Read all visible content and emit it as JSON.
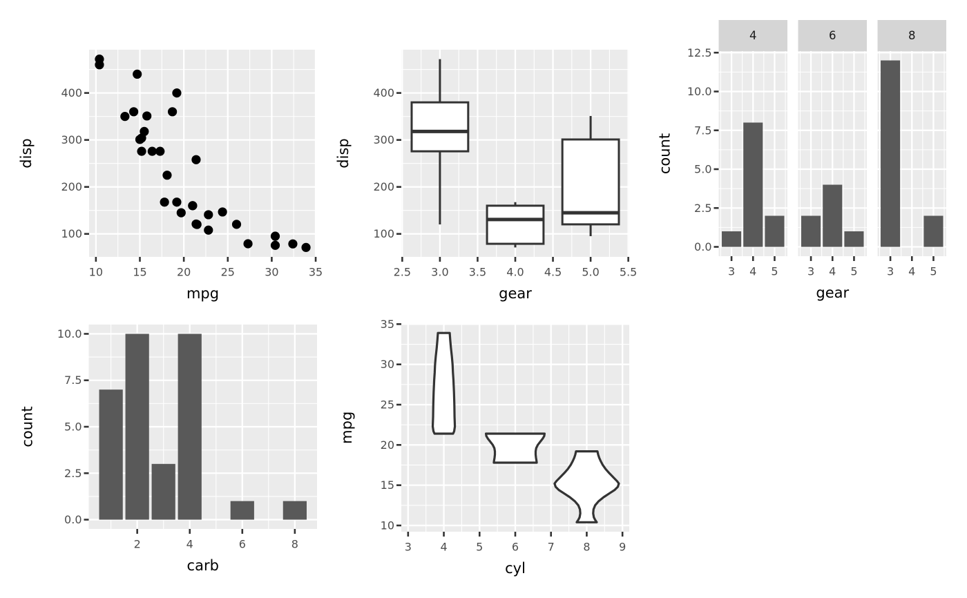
{
  "figure": {
    "background": "#FFFFFF",
    "panel_background": "#EBEBEB",
    "grid_major_color": "#FFFFFF",
    "grid_minor_color": "#FFFFFF",
    "tick_mark_color": "#333333",
    "tick_label_color": "#4D4D4D",
    "axis_title_color": "#000000",
    "bar_fill": "#595959",
    "point_fill": "#000000",
    "geom_outline_color": "#333333",
    "geom_fill": "#FFFFFF",
    "strip_background": "#D5D5D5",
    "strip_text_color": "#1A1A1A"
  },
  "chart_data": [
    {
      "id": "scatter-disp-mpg",
      "type": "scatter",
      "xlabel": "mpg",
      "ylabel": "disp",
      "xlim": [
        9.225,
        35.075
      ],
      "ylim": [
        51.05,
        492.05
      ],
      "xticks": [
        10,
        15,
        20,
        25,
        30,
        35
      ],
      "xtick_labels": [
        "10",
        "15",
        "20",
        "25",
        "30",
        "35"
      ],
      "yticks": [
        100,
        200,
        300,
        400
      ],
      "ytick_labels": [
        "100",
        "200",
        "300",
        "400"
      ],
      "xminor": [
        12.5,
        17.5,
        22.5,
        27.5,
        32.5
      ],
      "yminor": [
        50,
        150,
        250,
        350,
        450
      ],
      "grid": true,
      "points": [
        [
          21.0,
          160.0
        ],
        [
          21.0,
          160.0
        ],
        [
          22.8,
          108.0
        ],
        [
          21.4,
          258.0
        ],
        [
          18.7,
          360.0
        ],
        [
          18.1,
          225.0
        ],
        [
          14.3,
          360.0
        ],
        [
          24.4,
          146.7
        ],
        [
          22.8,
          140.8
        ],
        [
          19.2,
          167.6
        ],
        [
          17.8,
          167.6
        ],
        [
          16.4,
          275.8
        ],
        [
          17.3,
          275.8
        ],
        [
          15.2,
          275.8
        ],
        [
          10.4,
          472.0
        ],
        [
          10.4,
          460.0
        ],
        [
          14.7,
          440.0
        ],
        [
          32.4,
          78.7
        ],
        [
          30.4,
          75.7
        ],
        [
          33.9,
          71.1
        ],
        [
          21.5,
          120.1
        ],
        [
          15.5,
          318.0
        ],
        [
          15.2,
          304.0
        ],
        [
          13.3,
          350.0
        ],
        [
          19.2,
          400.0
        ],
        [
          27.3,
          79.0
        ],
        [
          26.0,
          120.3
        ],
        [
          30.4,
          95.1
        ],
        [
          15.8,
          351.0
        ],
        [
          19.7,
          145.0
        ],
        [
          15.0,
          301.0
        ],
        [
          21.4,
          121.0
        ]
      ]
    },
    {
      "id": "boxplot-disp-gear",
      "type": "boxplot",
      "xlabel": "gear",
      "ylabel": "disp",
      "xlim": [
        2.4875,
        5.5125
      ],
      "ylim": [
        51.05,
        492.05
      ],
      "xticks": [
        2.5,
        3.0,
        3.5,
        4.0,
        4.5,
        5.0,
        5.5
      ],
      "xtick_labels": [
        "2.5",
        "3.0",
        "3.5",
        "4.0",
        "4.5",
        "5.0",
        "5.5"
      ],
      "yticks": [
        100,
        200,
        300,
        400
      ],
      "ytick_labels": [
        "100",
        "200",
        "300",
        "400"
      ],
      "xminor": [
        2.75,
        3.25,
        3.75,
        4.25,
        4.75,
        5.25
      ],
      "yminor": [
        50,
        150,
        250,
        350,
        450
      ],
      "grid": true,
      "box_width": 0.75,
      "boxes": [
        {
          "x": 3,
          "low": 120.1,
          "q1": 275.8,
          "median": 318.0,
          "q3": 380.0,
          "high": 472.0
        },
        {
          "x": 4,
          "low": 71.1,
          "q1": 78.9,
          "median": 130.6,
          "q3": 160.0,
          "high": 167.6
        },
        {
          "x": 5,
          "low": 95.1,
          "q1": 120.3,
          "median": 145.0,
          "q3": 301.0,
          "high": 351.0
        }
      ]
    },
    {
      "id": "facet-bar-gear-by-cyl",
      "type": "facet_bar",
      "xlabel": "gear",
      "ylabel": "count",
      "categories": [
        3,
        4,
        5
      ],
      "xtick_labels": [
        "3",
        "4",
        "5"
      ],
      "facets": [
        {
          "label": "4",
          "values": [
            1,
            8,
            2
          ]
        },
        {
          "label": "6",
          "values": [
            2,
            4,
            1
          ]
        },
        {
          "label": "8",
          "values": [
            12,
            0,
            2
          ]
        }
      ],
      "xlim": [
        2.405,
        5.595
      ],
      "ylim": [
        -0.6,
        12.6
      ],
      "yticks": [
        0,
        2.5,
        5,
        7.5,
        10,
        12.5
      ],
      "ytick_labels": [
        "0.0",
        "2.5",
        "5.0",
        "7.5",
        "10.0",
        "12.5"
      ],
      "xminor": [
        2.5,
        3.5,
        4.5,
        5.5
      ],
      "yminor": [
        1.25,
        3.75,
        6.25,
        8.75,
        11.25
      ],
      "grid": true,
      "bar_width": 0.9
    },
    {
      "id": "bar-carb",
      "type": "bar",
      "xlabel": "carb",
      "ylabel": "count",
      "bars": [
        {
          "x": 1,
          "value": 7
        },
        {
          "x": 2,
          "value": 10
        },
        {
          "x": 3,
          "value": 3
        },
        {
          "x": 4,
          "value": 10
        },
        {
          "x": 6,
          "value": 1
        },
        {
          "x": 8,
          "value": 1
        }
      ],
      "xlim": [
        0.155,
        8.845
      ],
      "ylim": [
        -0.5,
        10.5
      ],
      "xticks": [
        2,
        4,
        6,
        8
      ],
      "xtick_labels": [
        "2",
        "4",
        "6",
        "8"
      ],
      "yticks": [
        0,
        2.5,
        5,
        7.5,
        10
      ],
      "ytick_labels": [
        "0.0",
        "2.5",
        "5.0",
        "7.5",
        "10.0"
      ],
      "xminor": [
        1,
        3,
        5,
        7
      ],
      "yminor": [
        1.25,
        3.75,
        6.25,
        8.75
      ],
      "grid": true,
      "bar_width": 0.9
    },
    {
      "id": "violin-mpg-cyl",
      "type": "violin",
      "xlabel": "cyl",
      "ylabel": "mpg",
      "xlim": [
        2.81,
        9.19
      ],
      "ylim": [
        9.225,
        35.075
      ],
      "xticks": [
        3,
        4,
        5,
        6,
        7,
        8,
        9
      ],
      "xtick_labels": [
        "3",
        "4",
        "5",
        "6",
        "7",
        "8",
        "9"
      ],
      "yticks": [
        10,
        15,
        20,
        25,
        30,
        35
      ],
      "ytick_labels": [
        "10",
        "15",
        "20",
        "25",
        "30",
        "35"
      ],
      "xminor": [
        3.5,
        4.5,
        5.5,
        6.5,
        7.5,
        8.5
      ],
      "yminor": [
        12.5,
        17.5,
        22.5,
        27.5,
        32.5
      ],
      "grid": true,
      "violins": [
        {
          "x": 4,
          "profile": [
            [
              21.4,
              0.26
            ],
            [
              21.7,
              0.29
            ],
            [
              22.3,
              0.31
            ],
            [
              23.5,
              0.3
            ],
            [
              25.0,
              0.295
            ],
            [
              26.5,
              0.285
            ],
            [
              28.0,
              0.27
            ],
            [
              29.0,
              0.255
            ],
            [
              30.0,
              0.245
            ],
            [
              31.0,
              0.225
            ],
            [
              32.0,
              0.2
            ],
            [
              33.0,
              0.18
            ],
            [
              33.9,
              0.165
            ]
          ]
        },
        {
          "x": 6,
          "profile": [
            [
              17.8,
              0.6
            ],
            [
              18.0,
              0.595
            ],
            [
              18.4,
              0.58
            ],
            [
              18.8,
              0.57
            ],
            [
              19.2,
              0.57
            ],
            [
              19.6,
              0.585
            ],
            [
              20.0,
              0.63
            ],
            [
              20.4,
              0.7
            ],
            [
              20.8,
              0.77
            ],
            [
              21.1,
              0.81
            ],
            [
              21.4,
              0.82
            ]
          ]
        },
        {
          "x": 8,
          "profile": [
            [
              10.4,
              0.28
            ],
            [
              10.7,
              0.235
            ],
            [
              11.0,
              0.2
            ],
            [
              11.5,
              0.18
            ],
            [
              12.0,
              0.19
            ],
            [
              12.5,
              0.235
            ],
            [
              13.0,
              0.33
            ],
            [
              13.5,
              0.47
            ],
            [
              14.0,
              0.64
            ],
            [
              14.4,
              0.78
            ],
            [
              14.8,
              0.87
            ],
            [
              15.2,
              0.9
            ],
            [
              15.5,
              0.85
            ],
            [
              16.0,
              0.74
            ],
            [
              16.5,
              0.63
            ],
            [
              17.0,
              0.53
            ],
            [
              17.5,
              0.45
            ],
            [
              18.0,
              0.39
            ],
            [
              18.4,
              0.35
            ],
            [
              18.8,
              0.32
            ],
            [
              19.2,
              0.3
            ]
          ]
        }
      ]
    }
  ]
}
